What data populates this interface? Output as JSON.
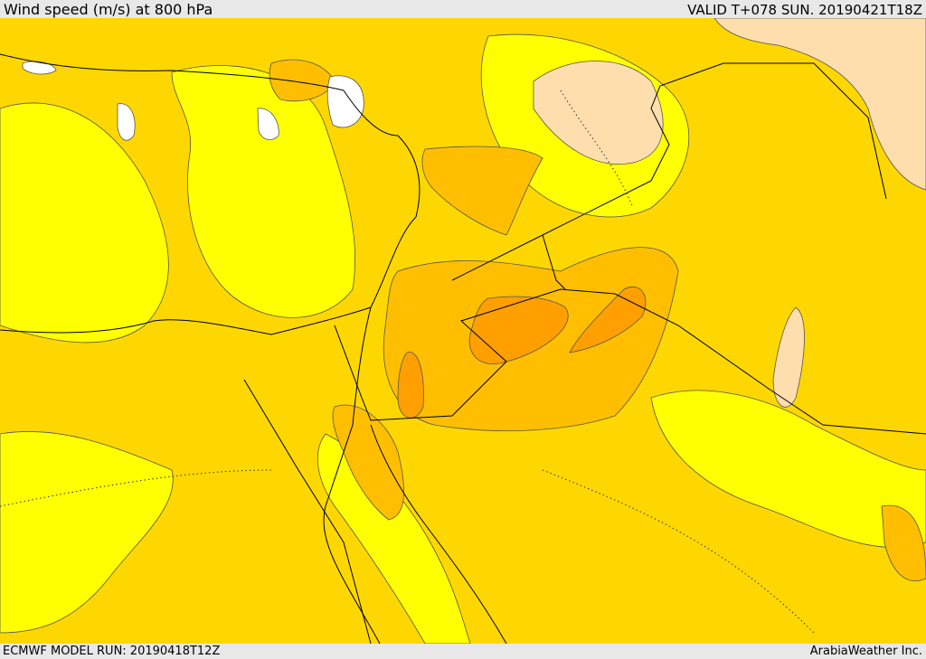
{
  "header": {
    "title": "Wind speed (m/s) at 800 hPa",
    "valid": "VALID T+078 SUN. 20190421T18Z"
  },
  "footer": {
    "model_run": "ECMWF MODEL RUN: 20190418T12Z",
    "brand": "ArabiaWeather Inc."
  }
}
